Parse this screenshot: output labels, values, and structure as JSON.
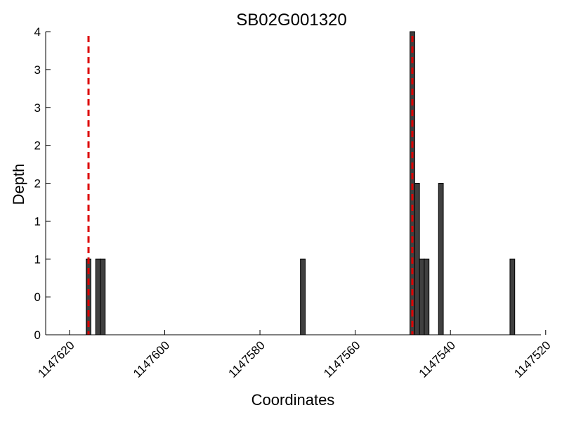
{
  "chart_data": {
    "type": "bar",
    "title": "SB02G001320",
    "xlabel": "Coordinates",
    "ylabel": "Depth",
    "xlim": [
      1147625,
      1147521
    ],
    "ylim": [
      0,
      4
    ],
    "x_ticks": [
      1147620,
      1147600,
      1147580,
      1147560,
      1147540,
      1147520
    ],
    "x_tick_labels": [
      "1147620",
      "1147600",
      "1147580",
      "1147560",
      "1147540",
      "1147520"
    ],
    "y_ticks": [
      0,
      0.5,
      1,
      1.5,
      2,
      2.5,
      3,
      3.5,
      4
    ],
    "y_tick_labels": [
      "0",
      "0",
      "1",
      "1",
      "2",
      "2",
      "3",
      "3",
      "4"
    ],
    "bar_width": 1,
    "bar_color": "#404040",
    "x": [
      1147616,
      1147614,
      1147613,
      1147571,
      1147548,
      1147547,
      1147546,
      1147545,
      1147542,
      1147527
    ],
    "values": [
      1,
      1,
      1,
      1,
      4,
      2,
      1,
      1,
      2,
      1
    ],
    "reference_lines": [
      {
        "x": 1147616,
        "color": "#dd0000",
        "style": "dashed"
      },
      {
        "x": 1147548,
        "color": "#dd0000",
        "style": "dashed"
      }
    ],
    "grid": false
  }
}
